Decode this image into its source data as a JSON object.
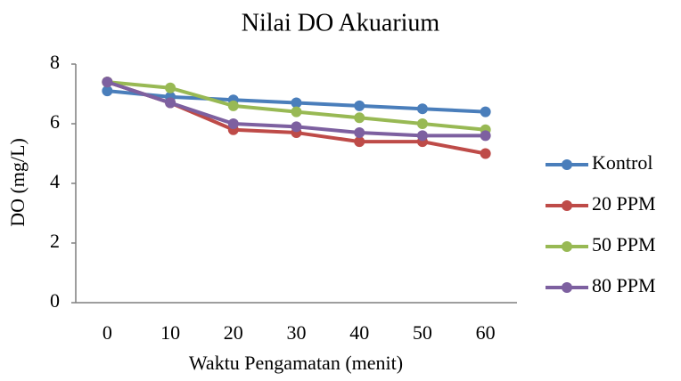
{
  "chart_data": {
    "type": "line",
    "title": "Nilai DO Akuarium",
    "x_label": "Waktu Pengamatan (menit)",
    "y_label": "DO (mg/L)",
    "categories": [
      "0",
      "10",
      "20",
      "30",
      "40",
      "50",
      "60"
    ],
    "series": [
      {
        "name": "Kontrol",
        "color": "#4a7ebb",
        "values": [
          7.1,
          6.9,
          6.8,
          6.7,
          6.6,
          6.5,
          6.4
        ]
      },
      {
        "name": "20 PPM",
        "color": "#be4b48",
        "values": [
          7.4,
          6.7,
          5.8,
          5.7,
          5.4,
          5.4,
          5.0
        ]
      },
      {
        "name": "50 PPM",
        "color": "#98b954",
        "values": [
          7.4,
          7.2,
          6.6,
          6.4,
          6.2,
          6.0,
          5.8
        ]
      },
      {
        "name": "80 PPM",
        "color": "#7d60a0",
        "values": [
          7.4,
          6.7,
          6.0,
          5.9,
          5.7,
          5.6,
          5.6
        ]
      }
    ],
    "ylim": [
      0,
      8
    ],
    "yticks": [
      0,
      2,
      4,
      6,
      8
    ],
    "legend": "right"
  }
}
